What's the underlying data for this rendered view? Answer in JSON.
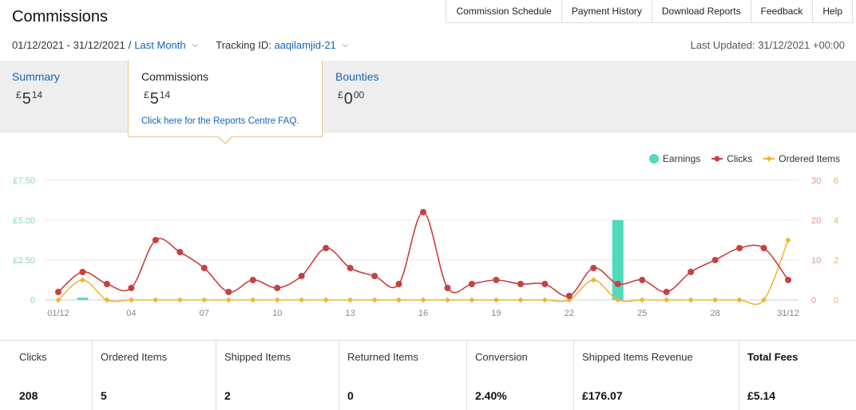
{
  "header": {
    "title": "Commissions",
    "nav": [
      "Commission Schedule",
      "Payment History",
      "Download Reports",
      "Feedback",
      "Help"
    ]
  },
  "filters": {
    "date_range": "01/12/2021 - 31/12/2021",
    "separator": "/",
    "period": "Last Month",
    "tracking_label": "Tracking ID:",
    "tracking_id": "aaqilamjid-21",
    "last_updated": "Last Updated: 31/12/2021 +00:00"
  },
  "tabs": {
    "summary": {
      "label": "Summary",
      "currency": "£",
      "whole": "5",
      "fraction": "14"
    },
    "commissions": {
      "label": "Commissions",
      "currency": "£",
      "whole": "5",
      "fraction": "14",
      "faq": "Click here for the Reports Centre FAQ."
    },
    "bounties": {
      "label": "Bounties",
      "currency": "£",
      "whole": "0",
      "fraction": "00"
    }
  },
  "colors": {
    "earnings": "#4fd9bd",
    "clicks": "#c84040",
    "ordered_items": "#f0b32e",
    "link": "#1464b4"
  },
  "chart_data": {
    "type": "line",
    "legend": [
      "Earnings",
      "Clicks",
      "Ordered Items"
    ],
    "legend_position": "top-right",
    "x_tick_labels": [
      "01/12",
      "04",
      "07",
      "10",
      "13",
      "16",
      "19",
      "22",
      "25",
      "28",
      "31/12"
    ],
    "x": [
      1,
      2,
      3,
      4,
      5,
      6,
      7,
      8,
      9,
      10,
      11,
      12,
      13,
      14,
      15,
      16,
      17,
      18,
      19,
      20,
      21,
      22,
      23,
      24,
      25,
      26,
      27,
      28,
      29,
      30,
      31
    ],
    "y_left_ticks": [
      "£7.50",
      "£5.00",
      "£2.50",
      "0"
    ],
    "y_left_range": [
      0,
      7.5
    ],
    "y_right_clicks_ticks": [
      "30",
      "20",
      "10",
      "0"
    ],
    "y_right_clicks_range": [
      0,
      30
    ],
    "y_right_items_ticks": [
      "6",
      "4",
      "2",
      "0"
    ],
    "y_right_items_range": [
      0,
      6
    ],
    "grid": true,
    "series": [
      {
        "name": "Earnings",
        "type": "bar",
        "axis": "left",
        "values": [
          0,
          0.14,
          0,
          0,
          0,
          0,
          0,
          0,
          0,
          0,
          0,
          0,
          0,
          0,
          0,
          0,
          0,
          0,
          0,
          0,
          0,
          0,
          0,
          5.0,
          0,
          0,
          0,
          0,
          0,
          0,
          0
        ]
      },
      {
        "name": "Clicks",
        "type": "line",
        "axis": "clicks",
        "values": [
          2,
          7,
          4,
          3,
          15,
          12,
          8,
          2,
          5,
          3,
          6,
          13,
          8,
          6,
          4,
          22,
          3,
          4,
          5,
          4,
          4,
          1,
          8,
          4,
          5,
          2,
          7,
          10,
          13,
          13,
          5
        ]
      },
      {
        "name": "Ordered Items",
        "type": "line",
        "axis": "items",
        "values": [
          0,
          1,
          0,
          0,
          0,
          0,
          0,
          0,
          0,
          0,
          0,
          0,
          0,
          0,
          0,
          0,
          0,
          0,
          0,
          0,
          0,
          0,
          1,
          0,
          0,
          0,
          0,
          0,
          0,
          0,
          3
        ]
      }
    ]
  },
  "stats": [
    {
      "label": "Clicks",
      "value": "208"
    },
    {
      "label": "Ordered Items",
      "value": "5"
    },
    {
      "label": "Shipped Items",
      "value": "2"
    },
    {
      "label": "Returned Items",
      "value": "0"
    },
    {
      "label": "Conversion",
      "value": "2.40%"
    },
    {
      "label": "Shipped Items Revenue",
      "value": "£176.07"
    },
    {
      "label": "Total Fees",
      "value": "£5.14"
    }
  ]
}
